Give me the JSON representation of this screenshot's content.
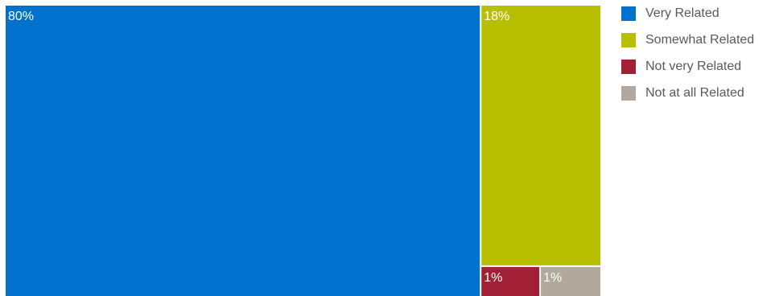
{
  "chart_data": {
    "type": "treemap",
    "title": "",
    "items": [
      {
        "name": "Very Related",
        "value": 80,
        "label": "80%",
        "color": "#0072CE"
      },
      {
        "name": "Somewhat Related",
        "value": 18,
        "label": "18%",
        "color": "#B8BF00"
      },
      {
        "name": "Not very Related",
        "value": 1,
        "label": "1%",
        "color": "#A22035"
      },
      {
        "name": "Not at all Related",
        "value": 1,
        "label": "1%",
        "color": "#B1A99C"
      }
    ],
    "legend_position": "right"
  }
}
